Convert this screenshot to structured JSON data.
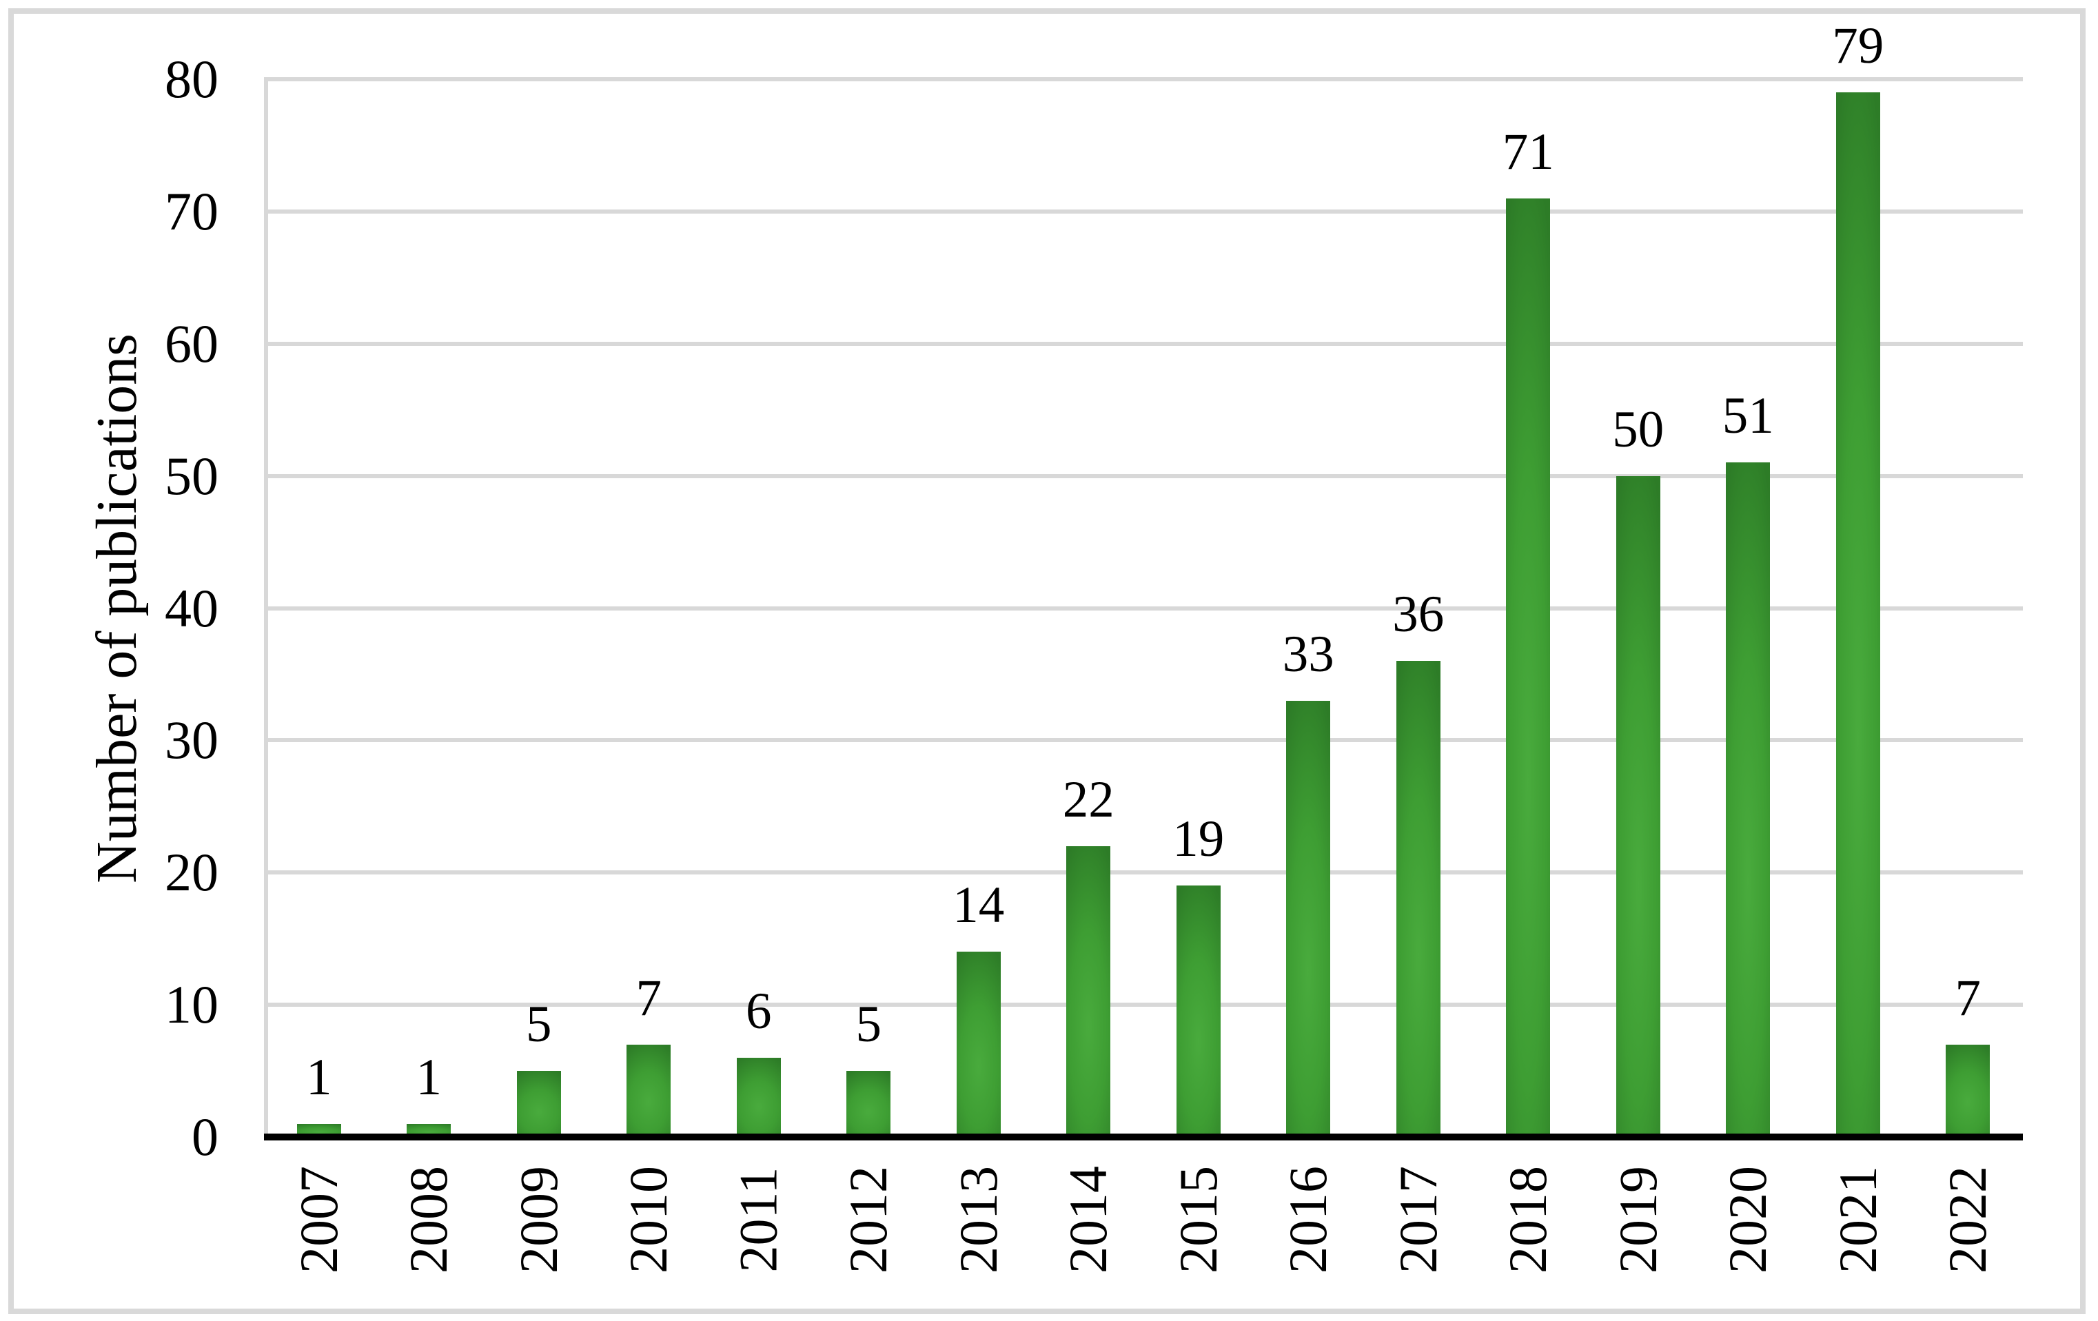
{
  "figure": {
    "background_color": "#ffffff",
    "border_color": "#d9d9d9"
  },
  "chart_data": {
    "type": "bar",
    "title": "",
    "xlabel": "",
    "ylabel": "Number of publications",
    "categories": [
      "2007",
      "2008",
      "2009",
      "2010",
      "2011",
      "2012",
      "2013",
      "2014",
      "2015",
      "2016",
      "2017",
      "2018",
      "2019",
      "2020",
      "2021",
      "2022"
    ],
    "values": [
      1,
      1,
      5,
      7,
      6,
      5,
      14,
      22,
      19,
      33,
      36,
      71,
      50,
      51,
      79,
      7
    ],
    "data_labels": [
      "1",
      "1",
      "5",
      "7",
      "6",
      "5",
      "14",
      "22",
      "19",
      "33",
      "36",
      "71",
      "50",
      "51",
      "79",
      "7"
    ],
    "ylim": [
      0,
      80
    ],
    "yticks": [
      0,
      10,
      20,
      30,
      40,
      50,
      60,
      70,
      80
    ],
    "grid": true,
    "legend_position": "none",
    "bar_color_center": "#49ab3d",
    "bar_color_mid": "#3e9e33",
    "bar_color_edge": "#2d7c27",
    "gridline_color": "#d8d8d8",
    "axis_line_color": "#000000",
    "text_color": "#000000"
  }
}
